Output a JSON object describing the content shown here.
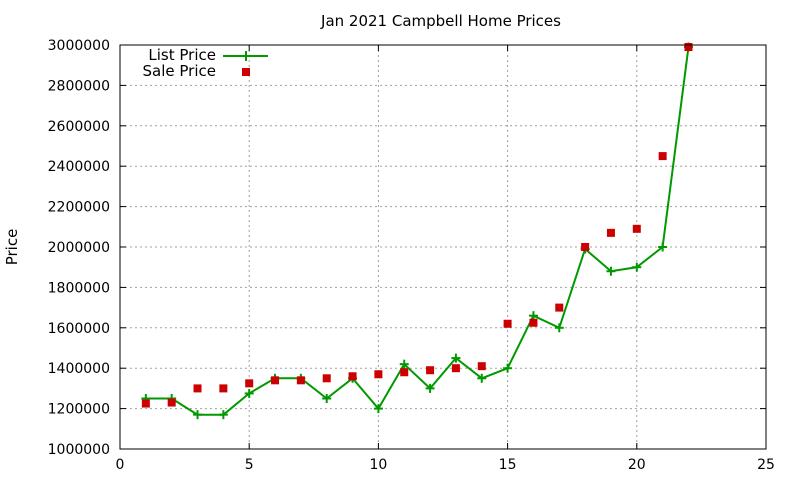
{
  "chart_data": {
    "type": "line",
    "title": "Jan 2021 Campbell Home Prices",
    "xlabel": "",
    "ylabel": "Price",
    "xlim": [
      0,
      25
    ],
    "ylim": [
      1000000,
      3000000
    ],
    "x_ticks": [
      0,
      5,
      10,
      15,
      20,
      25
    ],
    "y_ticks": [
      1000000,
      1200000,
      1400000,
      1600000,
      1800000,
      2000000,
      2200000,
      2400000,
      2600000,
      2800000,
      3000000
    ],
    "grid": true,
    "legend_position": "top-left",
    "series": [
      {
        "name": "List Price",
        "style": "line+cross",
        "color": "#009900",
        "x": [
          1,
          2,
          3,
          4,
          5,
          6,
          7,
          8,
          9,
          10,
          11,
          12,
          13,
          14,
          15,
          16,
          17,
          18,
          19,
          20,
          21,
          22
        ],
        "y": [
          1250000,
          1250000,
          1170000,
          1170000,
          1275000,
          1350000,
          1350000,
          1250000,
          1350000,
          1200000,
          1420000,
          1300000,
          1450000,
          1350000,
          1400000,
          1660000,
          1600000,
          1990000,
          1880000,
          1900000,
          2000000,
          2990000
        ]
      },
      {
        "name": "Sale Price",
        "style": "square",
        "color": "#cc0000",
        "x": [
          1,
          2,
          3,
          4,
          5,
          6,
          7,
          8,
          9,
          10,
          11,
          12,
          13,
          14,
          15,
          16,
          17,
          18,
          19,
          20,
          21,
          22
        ],
        "y": [
          1225000,
          1230000,
          1300000,
          1300000,
          1325000,
          1340000,
          1340000,
          1350000,
          1360000,
          1370000,
          1380000,
          1390000,
          1400000,
          1410000,
          1620000,
          1625000,
          1700000,
          2000000,
          2070000,
          2090000,
          2450000,
          2990000
        ]
      }
    ]
  }
}
